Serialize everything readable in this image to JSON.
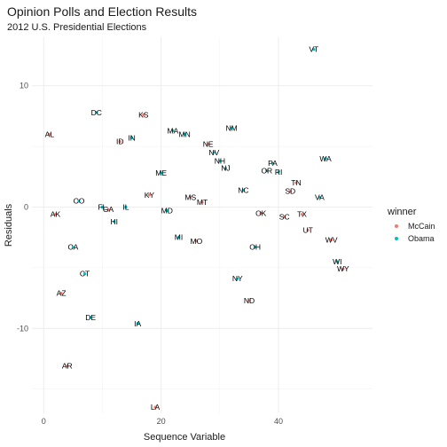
{
  "chart_data": {
    "type": "scatter",
    "title": "Opinion Polls and Election Results",
    "subtitle": "2012 U.S. Presidential Elections",
    "xlabel": "Sequence Variable",
    "ylabel": "Residuals",
    "xlim": [
      -2,
      56
    ],
    "ylim": [
      -17,
      14
    ],
    "x_ticks": [
      0,
      20,
      40
    ],
    "y_ticks": [
      -10,
      0,
      10
    ],
    "grid": true,
    "legend": {
      "title": "winner",
      "position": "right",
      "entries": [
        {
          "name": "McCain",
          "color": "#F8766D"
        },
        {
          "name": "Obama",
          "color": "#00BFC4"
        }
      ]
    },
    "series": [
      {
        "name": "McCain",
        "color": "#F8766D",
        "points": [
          {
            "label": "AL",
            "x": 1,
            "y": 6
          },
          {
            "label": "AK",
            "x": 2,
            "y": -0.6
          },
          {
            "label": "AZ",
            "x": 3,
            "y": -7.1
          },
          {
            "label": "AR",
            "x": 4,
            "y": -13.1
          },
          {
            "label": "GA",
            "x": 11,
            "y": -0.2
          },
          {
            "label": "ID",
            "x": 13,
            "y": 5.4
          },
          {
            "label": "KS",
            "x": 17,
            "y": 7.6
          },
          {
            "label": "KY",
            "x": 18,
            "y": 1
          },
          {
            "label": "LA",
            "x": 19,
            "y": -16.5
          },
          {
            "label": "MS",
            "x": 25,
            "y": 0.8
          },
          {
            "label": "MO",
            "x": 26,
            "y": -2.8
          },
          {
            "label": "MT",
            "x": 27,
            "y": 0.4
          },
          {
            "label": "NE",
            "x": 28,
            "y": 5.2
          },
          {
            "label": "ND",
            "x": 35,
            "y": -7.7
          },
          {
            "label": "OK",
            "x": 37,
            "y": -0.5
          },
          {
            "label": "SC",
            "x": 41,
            "y": -0.8
          },
          {
            "label": "SD",
            "x": 42,
            "y": 1.3
          },
          {
            "label": "TN",
            "x": 43,
            "y": 2
          },
          {
            "label": "TX",
            "x": 44,
            "y": -0.6
          },
          {
            "label": "UT",
            "x": 45,
            "y": -1.9
          },
          {
            "label": "WV",
            "x": 49,
            "y": -2.7
          },
          {
            "label": "WY",
            "x": 51,
            "y": -5.1
          }
        ]
      },
      {
        "name": "Obama",
        "color": "#00BFC4",
        "points": [
          {
            "label": "CA",
            "x": 5,
            "y": -3.3
          },
          {
            "label": "CO",
            "x": 6,
            "y": 0.5
          },
          {
            "label": "CT",
            "x": 7,
            "y": -5.5
          },
          {
            "label": "DE",
            "x": 8,
            "y": -9.1
          },
          {
            "label": "DC",
            "x": 9,
            "y": 7.8
          },
          {
            "label": "FL",
            "x": 10,
            "y": 0
          },
          {
            "label": "HI",
            "x": 12,
            "y": -1.2
          },
          {
            "label": "IL",
            "x": 14,
            "y": 0
          },
          {
            "label": "IN",
            "x": 15,
            "y": 5.7
          },
          {
            "label": "IA",
            "x": 16,
            "y": -9.6
          },
          {
            "label": "ME",
            "x": 20,
            "y": 2.8
          },
          {
            "label": "MD",
            "x": 21,
            "y": -0.3
          },
          {
            "label": "MA",
            "x": 22,
            "y": 6.3
          },
          {
            "label": "MI",
            "x": 23,
            "y": -2.5
          },
          {
            "label": "MN",
            "x": 24,
            "y": 6
          },
          {
            "label": "NV",
            "x": 29,
            "y": 4.5
          },
          {
            "label": "NH",
            "x": 30,
            "y": 3.8
          },
          {
            "label": "NJ",
            "x": 31,
            "y": 3.2
          },
          {
            "label": "NM",
            "x": 32,
            "y": 6.5
          },
          {
            "label": "NY",
            "x": 33,
            "y": -5.9
          },
          {
            "label": "NC",
            "x": 34,
            "y": 1.4
          },
          {
            "label": "OH",
            "x": 36,
            "y": -3.3
          },
          {
            "label": "OR",
            "x": 38,
            "y": 3
          },
          {
            "label": "PA",
            "x": 39,
            "y": 3.6
          },
          {
            "label": "RI",
            "x": 40,
            "y": 2.9
          },
          {
            "label": "VT",
            "x": 46,
            "y": 13
          },
          {
            "label": "VA",
            "x": 47,
            "y": 0.8
          },
          {
            "label": "WA",
            "x": 48,
            "y": 4
          },
          {
            "label": "WI",
            "x": 50,
            "y": -4.5
          }
        ]
      }
    ]
  }
}
